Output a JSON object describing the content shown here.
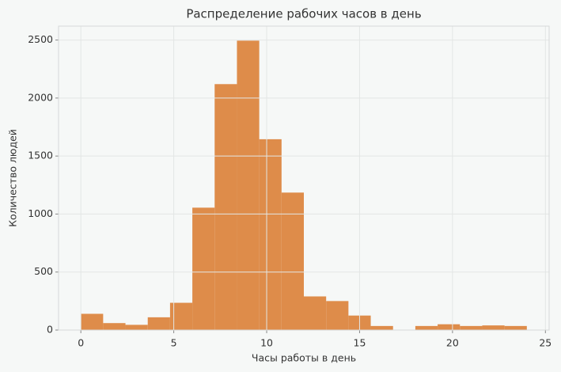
{
  "chart_data": {
    "type": "histogram",
    "title": "Распределение рабочих часов в день",
    "x_label": "Часы работы в день",
    "y_label": "Количество людей",
    "bins": [
      0,
      1.2,
      2.4,
      3.6,
      4.8,
      6.0,
      7.2,
      8.4,
      9.6,
      10.8,
      12.0,
      13.2,
      14.4,
      15.6,
      16.8,
      18.0,
      19.2,
      20.4,
      21.6,
      22.8,
      24.0
    ],
    "values": [
      140,
      60,
      45,
      110,
      235,
      1055,
      2120,
      2495,
      1645,
      1185,
      290,
      250,
      125,
      35,
      0,
      35,
      50,
      35,
      40,
      35
    ],
    "color": "#de8c4a",
    "xlim": [
      -1.2,
      25.2
    ],
    "ylim": [
      0,
      2620
    ],
    "xticks": [
      0,
      5,
      10,
      15,
      20,
      25
    ],
    "yticks": [
      0,
      500,
      1000,
      1500,
      2000,
      2500
    ],
    "grid": true
  }
}
